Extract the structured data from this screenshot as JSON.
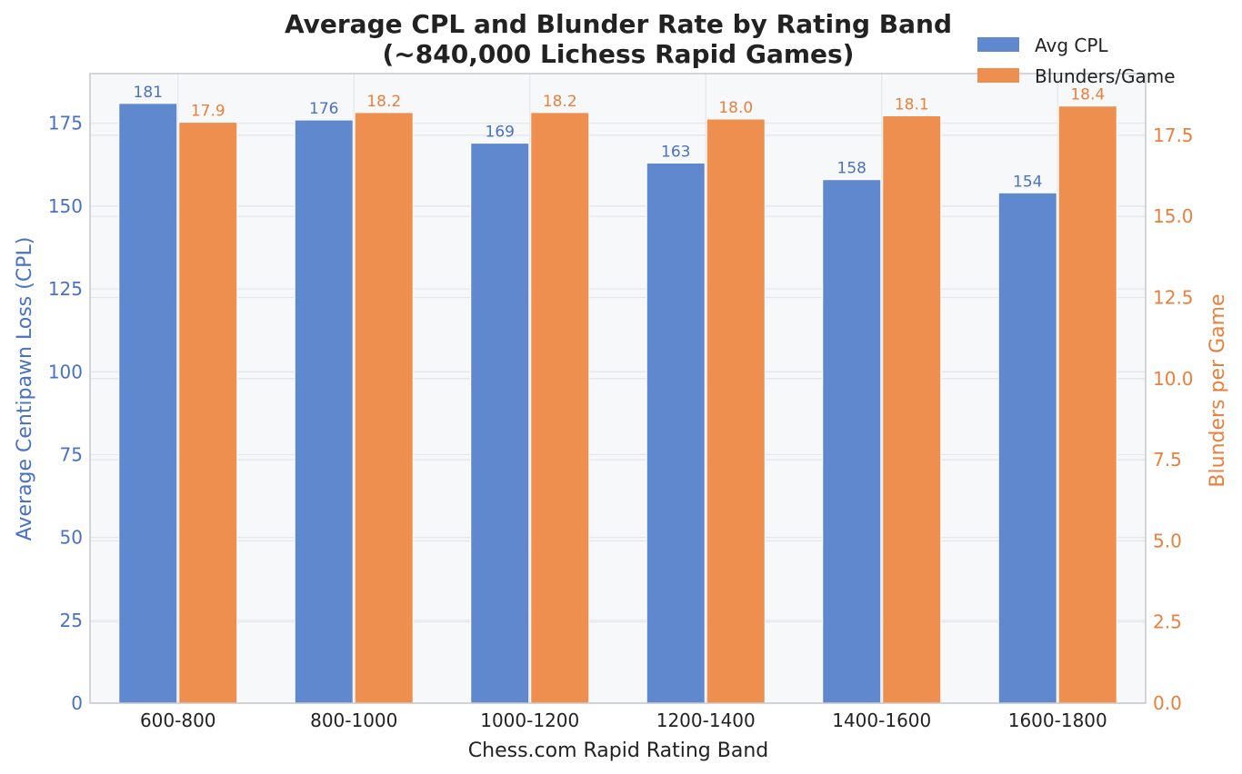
{
  "chart_data": {
    "type": "bar",
    "title": "Average CPL and Blunder Rate by Rating Band",
    "subtitle": "(~840,000 Lichess Rapid Games)",
    "xlabel": "Chess.com Rapid Rating Band",
    "ylabel_left": "Average Centipawn Loss (CPL)",
    "ylabel_right": "Blunders per Game",
    "categories": [
      "600-800",
      "800-1000",
      "1000-1200",
      "1200-1400",
      "1400-1600",
      "1600-1800"
    ],
    "series": [
      {
        "name": "Avg CPL",
        "axis": "left",
        "color": "#6088cf",
        "values": [
          181,
          176,
          169,
          163,
          158,
          154
        ],
        "labels": [
          "181",
          "176",
          "169",
          "163",
          "158",
          "154"
        ]
      },
      {
        "name": "Blunders/Game",
        "axis": "right",
        "color": "#ee8e4f",
        "values": [
          17.9,
          18.2,
          18.2,
          18.0,
          18.1,
          18.4
        ],
        "labels": [
          "17.9",
          "18.2",
          "18.2",
          "18.0",
          "18.1",
          "18.4"
        ]
      }
    ],
    "ylim_left": [
      0,
      190
    ],
    "ylim_right": [
      0,
      19.4
    ],
    "yticks_left": [
      "0",
      "25",
      "50",
      "75",
      "100",
      "125",
      "150",
      "175"
    ],
    "yticks_right": [
      "0.0",
      "2.5",
      "5.0",
      "7.5",
      "10.0",
      "12.5",
      "15.0",
      "17.5"
    ],
    "grid": true,
    "legend_position": "top-right",
    "colors": {
      "left_axis": "#4a72c2",
      "right_axis": "#e8803e",
      "plot_background": "#f7f8fa",
      "grid": "#e3e5ea"
    }
  }
}
